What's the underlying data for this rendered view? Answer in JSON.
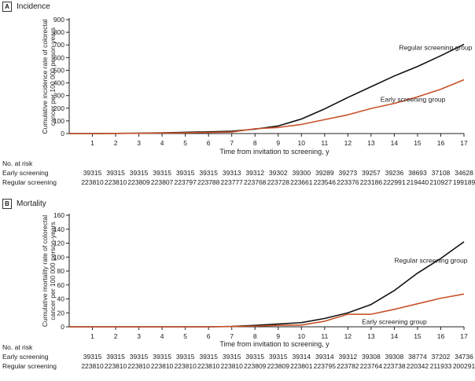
{
  "chart_data": [
    {
      "type": "line",
      "panel_letter": "A",
      "title": "Incidence",
      "ylabel": "Cumulative incidence rate of colorectal cancer per 100 000 person-years",
      "xlabel": "Time from invitation to screening, y",
      "xlim": [
        0,
        17
      ],
      "ylim": [
        0,
        900
      ],
      "yticks": [
        0,
        100,
        200,
        300,
        400,
        500,
        600,
        700,
        800,
        900
      ],
      "xticks": [
        1,
        2,
        3,
        4,
        5,
        6,
        7,
        8,
        9,
        10,
        11,
        12,
        13,
        14,
        15,
        16,
        17
      ],
      "series": [
        {
          "name": "Regular screening group",
          "color": "#111111",
          "x": [
            0,
            1,
            2,
            3,
            4,
            5,
            6,
            7,
            8,
            9,
            10,
            11,
            12,
            13,
            14,
            15,
            16,
            17
          ],
          "values": [
            0,
            0,
            1,
            3,
            6,
            10,
            14,
            18,
            35,
            60,
            115,
            195,
            285,
            370,
            455,
            530,
            615,
            705
          ]
        },
        {
          "name": "Early screening group",
          "color": "#c8522a",
          "x": [
            0,
            1,
            2,
            3,
            4,
            5,
            6,
            7,
            8,
            9,
            10,
            11,
            12,
            13,
            14,
            15,
            16,
            17
          ],
          "values": [
            0,
            0,
            1,
            2,
            4,
            6,
            9,
            12,
            38,
            48,
            72,
            110,
            148,
            198,
            238,
            290,
            350,
            425
          ]
        }
      ],
      "annotations": [
        "Regular screening group",
        "Early screening group"
      ],
      "at_risk": {
        "header": "No. at risk",
        "rows": [
          {
            "label": "Early screening",
            "values": [
              "39315",
              "39315",
              "39315",
              "39315",
              "39315",
              "39315",
              "39313",
              "39312",
              "39302",
              "39300",
              "39289",
              "39273",
              "39257",
              "39236",
              "38693",
              "37108",
              "34628"
            ]
          },
          {
            "label": "Regular screening",
            "values": [
              "223810",
              "223810",
              "223809",
              "223807",
              "223797",
              "223788",
              "223777",
              "223768",
              "223728",
              "223661",
              "223546",
              "223376",
              "223186",
              "222991",
              "219440",
              "210927",
              "199189"
            ]
          }
        ]
      }
    },
    {
      "type": "line",
      "panel_letter": "B",
      "title": "Mortality",
      "ylabel": "Cumulative mortality rate of colorectal cancer per 100 000 person-years",
      "xlabel": "Time from invitation to screening, y",
      "xlim": [
        0,
        17
      ],
      "ylim": [
        0,
        160
      ],
      "yticks": [
        0,
        20,
        40,
        60,
        80,
        100,
        120,
        140,
        160
      ],
      "xticks": [
        1,
        2,
        3,
        4,
        5,
        6,
        7,
        8,
        9,
        10,
        11,
        12,
        13,
        14,
        15,
        16,
        17
      ],
      "series": [
        {
          "name": "Regular screening group",
          "color": "#111111",
          "x": [
            0,
            1,
            2,
            3,
            4,
            5,
            6,
            7,
            8,
            9,
            10,
            11,
            12,
            13,
            14,
            15,
            16,
            17
          ],
          "values": [
            0,
            0,
            0,
            0,
            0,
            0,
            0,
            0.5,
            2,
            4,
            6,
            12,
            20,
            32,
            52,
            77,
            98,
            122
          ]
        },
        {
          "name": "Early screening group",
          "color": "#c8522a",
          "x": [
            0,
            1,
            2,
            3,
            4,
            5,
            6,
            7,
            8,
            9,
            10,
            11,
            12,
            13,
            14,
            15,
            16,
            17
          ],
          "values": [
            0,
            0,
            0,
            0,
            0,
            0,
            0,
            0.3,
            1,
            2,
            2.5,
            8,
            18,
            18,
            25,
            33,
            41,
            47
          ]
        }
      ],
      "annotations": [
        "Regular screening group",
        "Early screening group"
      ],
      "at_risk": {
        "header": "No. at risk",
        "rows": [
          {
            "label": "Early screening",
            "values": [
              "39315",
              "39315",
              "39315",
              "39315",
              "39315",
              "39315",
              "39315",
              "39315",
              "39315",
              "39314",
              "39314",
              "39312",
              "39308",
              "39308",
              "38774",
              "37202",
              "34736"
            ]
          },
          {
            "label": "Regular screening",
            "values": [
              "223810",
              "223810",
              "223810",
              "223810",
              "223810",
              "223810",
              "223810",
              "223809",
              "223809",
              "223801",
              "223795",
              "223782",
              "223764",
              "223738",
              "220342",
              "211933",
              "200291"
            ]
          }
        ]
      }
    }
  ]
}
